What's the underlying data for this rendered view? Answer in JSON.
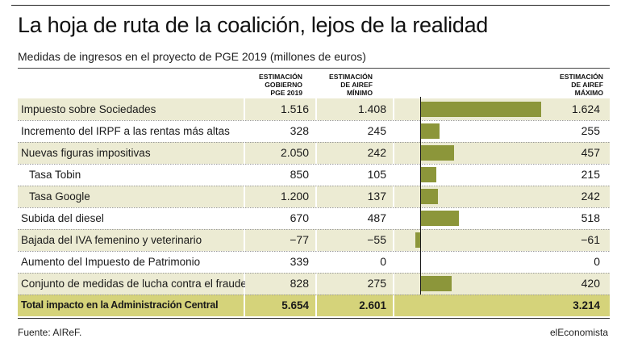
{
  "header": {
    "title": "La hoja de ruta de la coalición, lejos de la realidad",
    "subtitle": "Medidas de ingresos en el proyecto de PGE 2019 (millones de euros)"
  },
  "columns": {
    "gobierno": "ESTIMACIÓN\nGOBIERNO\nPGE 2019",
    "airef_min": "ESTIMACIÓN\nDE AIREF\nMÍNIMO",
    "airef_max": "ESTIMACIÓN\nDE AIREF\nMÁXIMO"
  },
  "rows": [
    {
      "label": "Impuesto sobre Sociedades",
      "gob": "1.516",
      "min": "1.408",
      "max": "1.624"
    },
    {
      "label": "Incremento del IRPF a las rentas más altas",
      "gob": "328",
      "min": "245",
      "max": "255"
    },
    {
      "label": "Nuevas figuras impositivas",
      "gob": "2.050",
      "min": "242",
      "max": "457"
    },
    {
      "label": "Tasa Tobin",
      "gob": "850",
      "min": "105",
      "max": "215"
    },
    {
      "label": "Tasa Google",
      "gob": "1.200",
      "min": "137",
      "max": "242"
    },
    {
      "label": "Subida del diesel",
      "gob": "670",
      "min": "487",
      "max": "518"
    },
    {
      "label": "Bajada del IVA femenino y veterinario",
      "gob": "−77",
      "min": "−55",
      "max": "−61"
    },
    {
      "label": "Aumento del Impuesto de Patrimonio",
      "gob": "339",
      "min": "0",
      "max": "0"
    },
    {
      "label": "Conjunto de medidas de lucha contra el fraude",
      "gob": "828",
      "min": "275",
      "max": "420"
    }
  ],
  "total": {
    "label": "Total impacto en la Administración Central",
    "gob": "5.654",
    "min": "2.601",
    "max": "3.214"
  },
  "footer": {
    "source": "Fuente: AIReF.",
    "brand": "elEconomista"
  },
  "colors": {
    "bar": "#8c963a",
    "shade": "#ecebd3",
    "total": "#d5d37a"
  },
  "chart_data": {
    "type": "bar",
    "orientation": "horizontal",
    "categories": [
      "Impuesto sobre Sociedades",
      "Incremento del IRPF a las rentas más altas",
      "Nuevas figuras impositivas",
      "Tasa Tobin",
      "Tasa Google",
      "Subida del diesel",
      "Bajada del IVA femenino y veterinario",
      "Aumento del Impuesto de Patrimonio",
      "Conjunto de medidas de lucha contra el fraude"
    ],
    "series": [
      {
        "values": [
          1624,
          255,
          457,
          215,
          242,
          518,
          -61,
          0,
          420
        ]
      }
    ],
    "table_series": [
      {
        "name": "Estimación Gobierno PGE 2019",
        "values": [
          1516,
          328,
          2050,
          850,
          1200,
          670,
          -77,
          339,
          828
        ],
        "total": 5654
      },
      {
        "name": "Estimación de AIReF mínimo",
        "values": [
          1408,
          245,
          242,
          105,
          137,
          487,
          -55,
          0,
          275
        ],
        "total": 2601
      },
      {
        "name": "Estimación de AIReF máximo",
        "values": [
          1624,
          255,
          457,
          215,
          242,
          518,
          -61,
          0,
          420
        ],
        "total": 3214
      }
    ],
    "xlim": [
      -100,
      1650
    ]
  }
}
